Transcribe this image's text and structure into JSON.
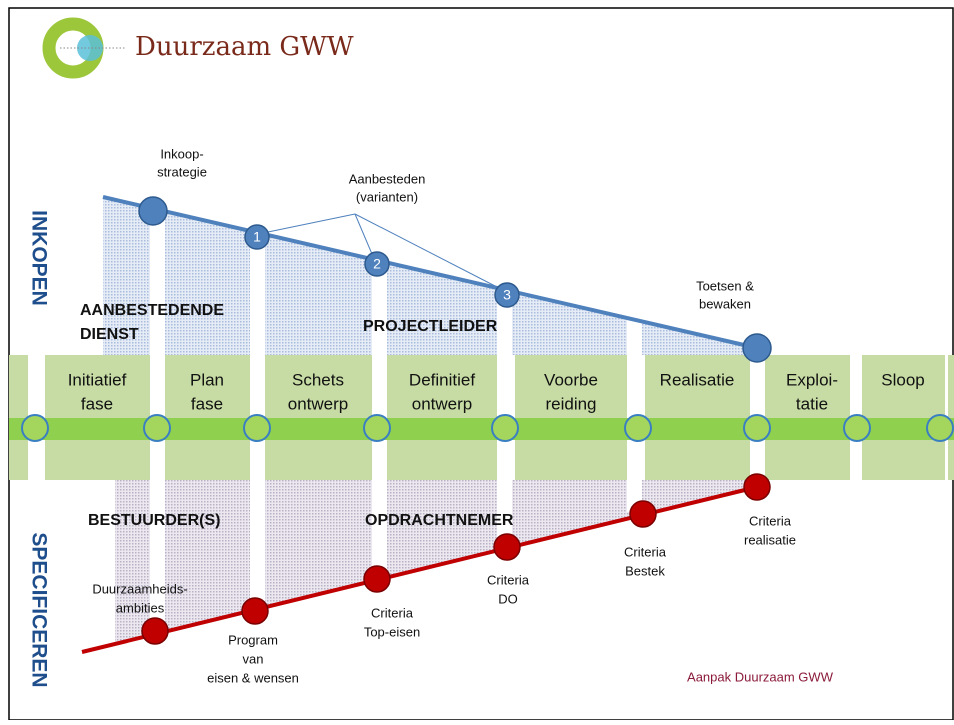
{
  "header": {
    "title": "Duurzaam GWW"
  },
  "sides": [
    "INKOPEN",
    "SPECIFICEREN"
  ],
  "phases": [
    [
      "Initiatief",
      "fase"
    ],
    [
      "Plan",
      "fase"
    ],
    [
      "Schets",
      "ontwerp"
    ],
    [
      "Definitief",
      "ontwerp"
    ],
    [
      "Voorbe",
      "reiding"
    ],
    [
      "Realisatie"
    ],
    [
      "Exploi-",
      "tatie"
    ],
    [
      "Sloop"
    ]
  ],
  "inkopen": {
    "annotations": [
      [
        "Inkoop-",
        "strategie"
      ],
      [
        "Aanbesteden",
        "(varianten)"
      ],
      [
        "Toetsen &",
        "bewaken"
      ]
    ],
    "steps": [
      "1",
      "2",
      "3"
    ],
    "roles": [
      [
        "AANBESTEDENDE",
        "DIENST"
      ],
      [
        "PROJECTLEIDER"
      ]
    ]
  },
  "specificeren": {
    "roles": [
      [
        "BESTUURDER(S)"
      ],
      [
        "OPDRACHTNEMER"
      ]
    ],
    "criteria": [
      [
        "Duurzaamheids-",
        "ambities"
      ],
      [
        "Program",
        "van",
        "eisen & wensen"
      ],
      [
        "Criteria",
        "Top-eisen"
      ],
      [
        "Criteria",
        "DO"
      ],
      [
        "Criteria",
        "Bestek"
      ],
      [
        "Criteria",
        "realisatie"
      ]
    ]
  },
  "footer": "Aanpak Duurzaam GWW"
}
